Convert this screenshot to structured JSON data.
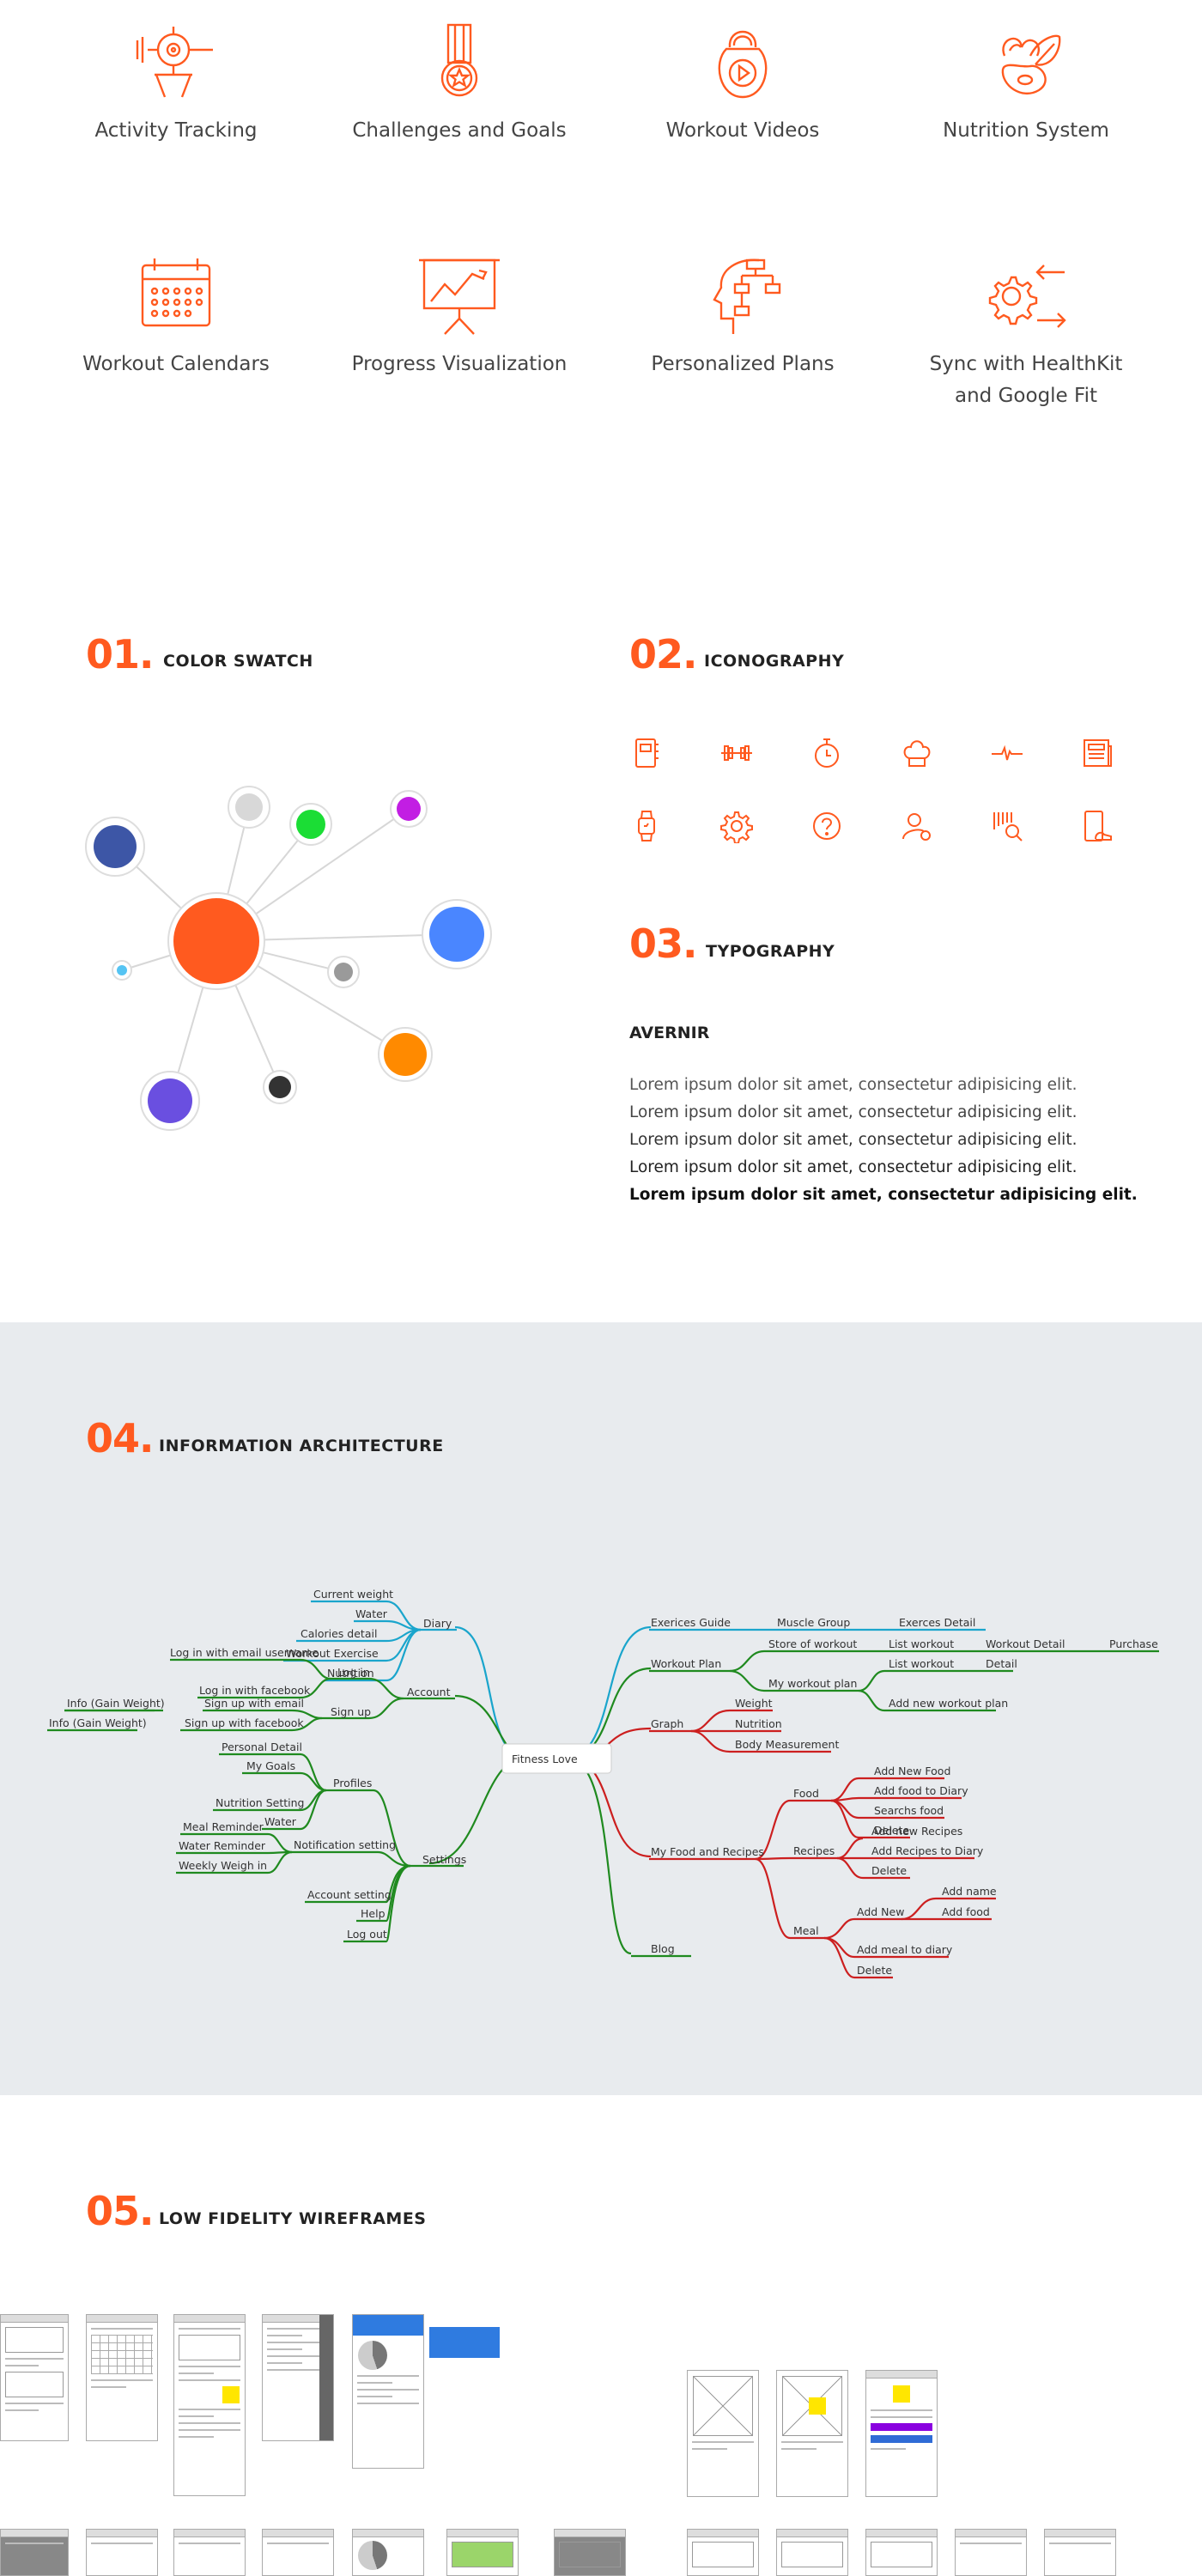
{
  "features": [
    {
      "label": "Activity Tracking",
      "icon": "activity-tracking-icon"
    },
    {
      "label": "Challenges and Goals",
      "icon": "medal-icon"
    },
    {
      "label": "Workout Videos",
      "icon": "kettlebell-video-icon"
    },
    {
      "label": "Nutrition System",
      "icon": "nutrition-icon"
    },
    {
      "label": "Workout Calendars",
      "icon": "calendar-icon"
    },
    {
      "label": "Progress Visualization",
      "icon": "presentation-chart-icon"
    },
    {
      "label": "Personalized Plans",
      "icon": "head-plan-icon"
    },
    {
      "label": "Sync with HealthKit and Google Fit",
      "label_line1": "Sync with HealthKit",
      "label_line2": "and Google Fit",
      "icon": "sync-gear-icon"
    }
  ],
  "sections": {
    "color": {
      "num": "01.",
      "title": "COLOR SWATCH"
    },
    "icon": {
      "num": "02.",
      "title": "ICONOGRAPHY"
    },
    "typo": {
      "num": "03.",
      "title": "TYPOGRAPHY"
    },
    "ia": {
      "num": "04.",
      "title": "INFORMATION ARCHITECTURE"
    },
    "wire": {
      "num": "05.",
      "title": "LOW FIDELITY WIREFRAMES"
    }
  },
  "colors": {
    "accent": "#ff5a1f",
    "navy": "#3d56a6",
    "light_gray": "#d8d8d8",
    "green": "#1bdd35",
    "magenta": "#c21ee3",
    "blue": "#4a86ff",
    "sky": "#55c4f3",
    "gray": "#9a9a9a",
    "orange": "#ff8a00",
    "purple": "#6a4fe0",
    "black": "#333333",
    "mm_blue": "#1aa5cc",
    "mm_green": "#1f8a1f",
    "mm_red": "#cc1f1f"
  },
  "iconography": [
    "phone-book-icon",
    "dumbbell-icon",
    "stopwatch-icon",
    "chef-hat-icon",
    "heartbeat-icon",
    "newspaper-icon",
    "smartwatch-icon",
    "gear-icon",
    "help-icon",
    "user-settings-icon",
    "barcode-search-icon",
    "phone-shoe-icon"
  ],
  "typography": {
    "font_name": "AVERNIR",
    "samples": [
      "Lorem ipsum dolor sit amet, consectetur adipisicing elit.",
      "Lorem ipsum dolor sit amet, consectetur adipisicing elit.",
      "Lorem ipsum dolor sit amet, consectetur adipisicing elit.",
      "Lorem ipsum dolor sit amet, consectetur adipisicing elit.",
      "Lorem ipsum dolor sit amet, consectetur adipisicing elit."
    ]
  },
  "mindmap": {
    "root": "Fitness Love",
    "labels": {
      "diary": "Diary",
      "current_weight": "Current weight",
      "water": "Water",
      "calories_detail": "Calories detail",
      "workout_exercise": "Workout Exercise",
      "nutrition": "Nutrition",
      "account": "Account",
      "log_in": "Log in",
      "log_in_email": "Log in with email username",
      "log_in_fb": "Log in with facebook",
      "sign_up": "Sign up",
      "sign_up_email": "Sign up with email",
      "sign_up_fb": "Sign up with facebook",
      "info_gain_1": "Info (Gain Weight)",
      "info_gain_2": "Info (Gain Weight)",
      "settings": "Settings",
      "profiles": "Profiles",
      "personal_detail": "Personal Detail",
      "my_goals": "My Goals",
      "nutrition_setting": "Nutrition Setting",
      "water2": "Water",
      "notification_setting": "Notification setting",
      "meal_reminder": "Meal Reminder",
      "water_reminder": "Water Reminder",
      "weekly_weigh_in": "Weekly Weigh in",
      "account_setting": "Account setting",
      "help": "Help",
      "log_out": "Log out",
      "exercises_guide": "Exerices Guide",
      "muscle_group": "Muscle Group",
      "exercises_detail": "Exerces Detail",
      "workout_plan": "Workout Plan",
      "store_of_workout": "Store of workout",
      "list_workout_1": "List workout",
      "workout_detail": "Workout Detail",
      "purchase": "Purchase",
      "my_workout_plan": "My workout plan",
      "list_workout_2": "List workout",
      "detail": "Detail",
      "add_new_workout_plan": "Add new workout plan",
      "graph": "Graph",
      "weight": "Weight",
      "nutrition2": "Nutrition",
      "body_measurement": "Body Measurement",
      "my_food_recipes": "My Food and Recipes",
      "food": "Food",
      "add_new_food": "Add New Food",
      "add_food_diary": "Add food to Diary",
      "search_food": "Searchs food",
      "delete1": "Delete",
      "recipes": "Recipes",
      "add_new_recipes": "Add new Recipes",
      "add_recipes_diary": "Add Recipes to Diary",
      "delete2": "Delete",
      "meal": "Meal",
      "add_new": "Add New",
      "add_name": "Add name",
      "add_food": "Add food",
      "add_meal_diary": "Add meal to diary",
      "delete3": "Delete",
      "blog": "Blog"
    }
  }
}
